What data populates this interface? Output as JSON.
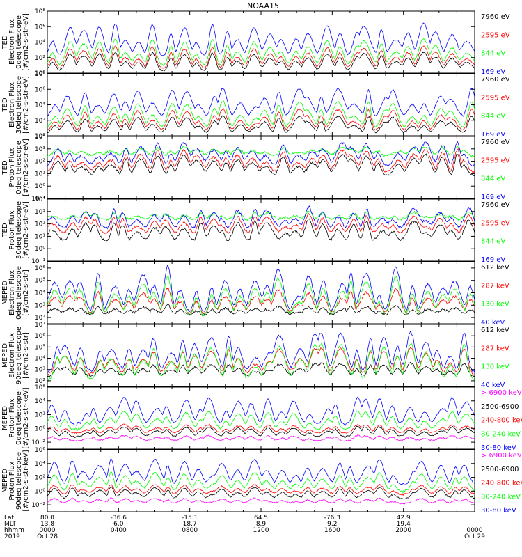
{
  "chart_data": {
    "type": "line",
    "title": "NOAA15",
    "x_axis": {
      "rows": [
        {
          "label": "Lat",
          "values": [
            "80.0",
            "-36.6",
            "-15.1",
            "64.5",
            "-76.3",
            "42.9",
            ""
          ]
        },
        {
          "label": "MLT",
          "values": [
            "13.8",
            "6.0",
            "18.7",
            "8.9",
            "9.2",
            "19.4",
            ""
          ]
        },
        {
          "label": "hhmm",
          "values": [
            "0000",
            "0400",
            "0800",
            "1200",
            "1600",
            "2000",
            "0000"
          ]
        },
        {
          "label": "2019",
          "values": [
            "Oct 28",
            "",
            "",
            "",
            "",
            "",
            "Oct 29"
          ]
        }
      ]
    },
    "panels": [
      {
        "ylabel": [
          "TED",
          "Electron Flux",
          "0deg telescope",
          "[#/cm2-s-str-eV]"
        ],
        "ytick_exp": [
          "0",
          "2",
          "4",
          "6",
          "8"
        ],
        "ylim_log": [
          0,
          8
        ],
        "series": [
          {
            "name": "7960 eV",
            "color": "#000000",
            "base": 0.3,
            "peak": 2.8
          },
          {
            "name": "2595 eV",
            "color": "#ff0000",
            "base": 0.6,
            "peak": 3.6
          },
          {
            "name": "844 eV",
            "color": "#00ff00",
            "base": 1.0,
            "peak": 4.6
          },
          {
            "name": "169 eV",
            "color": "#0000ff",
            "base": 2.2,
            "peak": 6.6
          }
        ]
      },
      {
        "ylabel": [
          "TED",
          "Electron Flux",
          "30deg telescope",
          "[#/cm2-s-str-eV]"
        ],
        "ytick_exp": [
          "0",
          "2",
          "4",
          "6",
          "8"
        ],
        "ylim_log": [
          0,
          8
        ],
        "series": [
          {
            "name": "7960 eV",
            "color": "#000000",
            "base": 0.3,
            "peak": 2.6
          },
          {
            "name": "2595 eV",
            "color": "#ff0000",
            "base": 0.6,
            "peak": 3.5
          },
          {
            "name": "844 eV",
            "color": "#00ff00",
            "base": 1.0,
            "peak": 4.5
          },
          {
            "name": "169 eV",
            "color": "#0000ff",
            "base": 2.4,
            "peak": 6.2
          }
        ]
      },
      {
        "ylabel": [
          "TED",
          "Proton Flux",
          "0deg telescope",
          "[#/cm2-s-str-eV]"
        ],
        "ytick_exp": [
          "-1",
          "0",
          "1",
          "2",
          "3",
          "4"
        ],
        "ylim_log": [
          -1,
          4
        ],
        "series": [
          {
            "name": "7960 eV",
            "color": "#000000",
            "base": 0.8,
            "peak": 2.6
          },
          {
            "name": "2595 eV",
            "color": "#ff0000",
            "base": 1.1,
            "peak": 3.0
          },
          {
            "name": "844 eV",
            "color": "#00ff00",
            "base": 2.4,
            "peak": 3.2
          },
          {
            "name": "169 eV",
            "color": "#0000ff",
            "base": 1.6,
            "peak": 3.6
          }
        ]
      },
      {
        "ylabel": [
          "TED",
          "Proton Flux",
          "30deg telescope",
          "[#/cm2-s-str-eV]"
        ],
        "ytick_exp": [
          "-1",
          "0",
          "1",
          "2",
          "3",
          "4"
        ],
        "ylim_log": [
          -1,
          4
        ],
        "series": [
          {
            "name": "7960 eV",
            "color": "#000000",
            "base": 0.6,
            "peak": 2.4
          },
          {
            "name": "2595 eV",
            "color": "#ff0000",
            "base": 1.2,
            "peak": 2.8
          },
          {
            "name": "844 eV",
            "color": "#00ff00",
            "base": 2.3,
            "peak": 3.0
          },
          {
            "name": "169 eV",
            "color": "#0000ff",
            "base": 1.6,
            "peak": 3.4
          }
        ]
      },
      {
        "ylabel": [
          "MEPED",
          "Electron Flux",
          "0deg telescope",
          "[#/cm2-s-str]"
        ],
        "ytick_exp": [
          "2",
          "3",
          "4",
          "5",
          "6"
        ],
        "ylim_log": [
          1.5,
          6.5
        ],
        "series": [
          {
            "name": "612 keV",
            "color": "#000000",
            "base": 2.2,
            "peak": 3.0
          },
          {
            "name": "287 keV",
            "color": "#ff0000",
            "base": 2.3,
            "peak": 4.4
          },
          {
            "name": "130 keV",
            "color": "#00ff00",
            "base": 2.1,
            "peak": 5.4
          },
          {
            "name": "40 keV",
            "color": "#0000ff",
            "base": 2.4,
            "peak": 6.2
          }
        ]
      },
      {
        "ylabel": [
          "MEPED",
          "Electron Flux",
          "90deg telescope",
          "[#/cm2-s-str]"
        ],
        "ytick_exp": [
          "2",
          "3",
          "4",
          "5",
          "6",
          "7"
        ],
        "ylim_log": [
          1.5,
          7
        ],
        "series": [
          {
            "name": "612 keV",
            "color": "#000000",
            "base": 2.4,
            "peak": 3.6
          },
          {
            "name": "287 keV",
            "color": "#ff0000",
            "base": 2.6,
            "peak": 5.0
          },
          {
            "name": "130 keV",
            "color": "#00ff00",
            "base": 2.1,
            "peak": 5.4
          },
          {
            "name": "40 keV",
            "color": "#0000ff",
            "base": 2.8,
            "peak": 6.4
          }
        ]
      },
      {
        "ylabel": [
          "MEPED",
          "Proton Flux",
          "0deg telescope",
          "[#/cm2-s-str-keV]"
        ],
        "ytick_exp": [
          "-2",
          "0",
          "2",
          "4",
          "6"
        ],
        "ylim_log": [
          -3,
          6
        ],
        "series": [
          {
            "name": "> 6900 keV",
            "color": "#ff00ff",
            "base": -1.8,
            "peak": -1.0
          },
          {
            "name": "2500-6900",
            "color": "#000000",
            "base": -1.2,
            "peak": 0.3
          },
          {
            "name": "240-800 keV",
            "color": "#ff0000",
            "base": -0.7,
            "peak": 0.6
          },
          {
            "name": "80-240 keV",
            "color": "#00ff00",
            "base": -0.2,
            "peak": 2.6
          },
          {
            "name": "30-80 keV",
            "color": "#0000ff",
            "base": 0.6,
            "peak": 4.6
          }
        ]
      },
      {
        "ylabel": [
          "MEPED",
          "Proton Flux",
          "90deg telescope",
          "[#/cm2-s-str-keV]"
        ],
        "ytick_exp": [
          "-2",
          "0",
          "2",
          "4",
          "6"
        ],
        "ylim_log": [
          -3,
          6
        ],
        "series": [
          {
            "name": "> 6900 keV",
            "color": "#ff00ff",
            "base": -1.8,
            "peak": -1.0
          },
          {
            "name": "2500-6900",
            "color": "#000000",
            "base": -1.1,
            "peak": 0.6
          },
          {
            "name": "240-800 keV",
            "color": "#ff0000",
            "base": -0.5,
            "peak": 1.0
          },
          {
            "name": "80-240 keV",
            "color": "#00ff00",
            "base": 0.0,
            "peak": 2.8
          },
          {
            "name": "30-80 keV",
            "color": "#0000ff",
            "base": 0.9,
            "peak": 4.8
          }
        ]
      }
    ]
  }
}
